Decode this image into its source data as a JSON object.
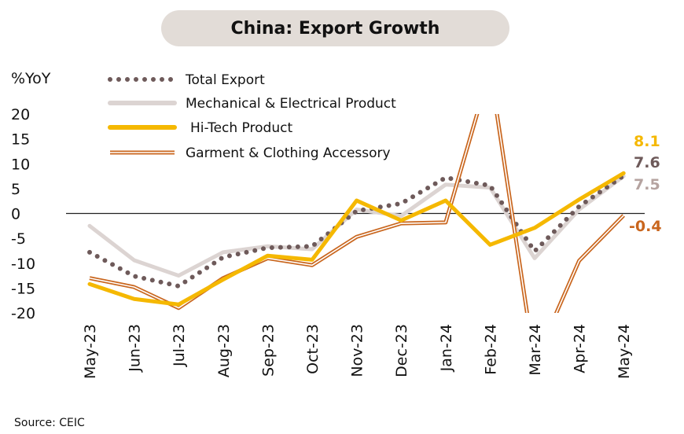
{
  "title": "China: Export Growth",
  "source": "Source: CEIC",
  "colors": {
    "total": "#6e5a5a",
    "mech": "#dcd4d2",
    "hitech": "#f5b800",
    "garment": "#c9661e"
  },
  "chart_data": {
    "type": "line",
    "title": "China: Export Growth",
    "ylabel": "%YoY",
    "ylim": [
      -20,
      20
    ],
    "yticks": [
      20,
      15,
      10,
      5,
      0,
      -5,
      -10,
      -15,
      -20
    ],
    "categories": [
      "May-23",
      "Jun-23",
      "Jul-23",
      "Aug-23",
      "Sep-23",
      "Oct-23",
      "Nov-23",
      "Dec-23",
      "Jan-24",
      "Feb-24",
      "Mar-24",
      "Apr-24",
      "May-24"
    ],
    "legend_position": "top-left",
    "series": [
      {
        "name": "Total Export",
        "style": "dotted",
        "color": "#6e5a5a",
        "values": [
          -7.8,
          -12.6,
          -14.6,
          -8.8,
          -6.9,
          -6.6,
          0.5,
          2.0,
          7.2,
          5.6,
          -7.6,
          1.4,
          7.6
        ],
        "end_label": "7.6"
      },
      {
        "name": "Mechanical & Electrical Product",
        "style": "solid-thick",
        "color": "#dcd4d2",
        "values": [
          -2.5,
          -9.4,
          -12.5,
          -7.8,
          -6.6,
          -7.2,
          0.8,
          -0.5,
          5.8,
          5.2,
          -9.0,
          0.8,
          7.5
        ],
        "end_label": "7.5"
      },
      {
        "name": "Hi-Tech Product",
        "style": "solid-thick",
        "color": "#f5b800",
        "values": [
          -14.2,
          -17.2,
          -18.3,
          -13.3,
          -8.5,
          -9.3,
          2.6,
          -1.4,
          2.6,
          -6.3,
          -2.9,
          2.8,
          8.1
        ],
        "end_label": "8.1"
      },
      {
        "name": "Garment & Clothing Accessory",
        "style": "double",
        "color": "#c9661e",
        "values": [
          -13.0,
          -14.8,
          -19.0,
          -13.0,
          -9.0,
          -10.4,
          -4.7,
          -2.0,
          -1.8,
          29.0,
          -30.0,
          -9.5,
          -0.4
        ],
        "end_label": "-0.4"
      }
    ]
  }
}
